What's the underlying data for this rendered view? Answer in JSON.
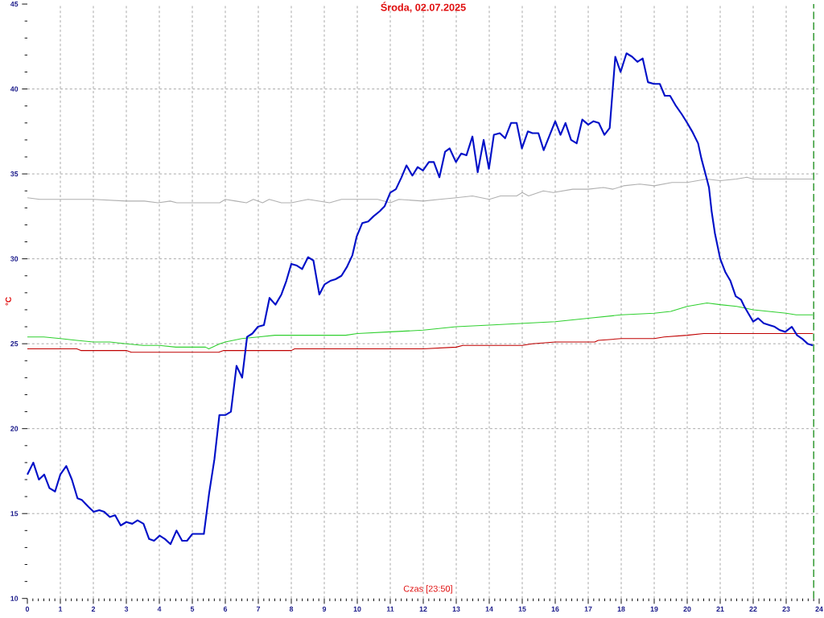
{
  "chart_data": {
    "type": "line",
    "title": "Środa, 02.07.2025",
    "xlabel": "Czas [23:50]",
    "ylabel": "°C",
    "xlim": [
      0,
      24
    ],
    "ylim": [
      10,
      45
    ],
    "xticks": [
      0,
      1,
      2,
      3,
      4,
      5,
      6,
      7,
      8,
      9,
      10,
      11,
      12,
      13,
      14,
      15,
      16,
      17,
      18,
      19,
      20,
      21,
      22,
      23,
      24
    ],
    "yticks": [
      10,
      15,
      20,
      25,
      30,
      35,
      40,
      45
    ],
    "grid": true,
    "marker": "none",
    "ref_lines": [
      {
        "axis": "x",
        "value": 23.833,
        "color": "#008000",
        "line_style": "dashed"
      }
    ],
    "series": [
      {
        "color": "#b0b0b0",
        "x": [
          0,
          0.38,
          1.0,
          1.36,
          2,
          3,
          3.55,
          3.96,
          4.33,
          4.53,
          5,
          5.83,
          6,
          6.32,
          6.64,
          6.85,
          7.13,
          7.33,
          7.7,
          8,
          8.51,
          9.16,
          9.52,
          10,
          10.62,
          11,
          11.26,
          12,
          12.49,
          13,
          13.49,
          14,
          14.34,
          14.83,
          15,
          15.19,
          15.64,
          15.94,
          16.53,
          17,
          17.46,
          17.75,
          18.07,
          18.56,
          19,
          19.54,
          20,
          20.59,
          21,
          21.49,
          21.81,
          22,
          23,
          23.81
        ],
        "values": [
          33.6,
          33.5,
          33.5,
          33.5,
          33.5,
          33.4,
          33.4,
          33.3,
          33.4,
          33.3,
          33.3,
          33.3,
          33.5,
          33.4,
          33.3,
          33.5,
          33.3,
          33.5,
          33.3,
          33.3,
          33.5,
          33.3,
          33.5,
          33.5,
          33.5,
          33.3,
          33.5,
          33.4,
          33.5,
          33.6,
          33.7,
          33.5,
          33.7,
          33.7,
          33.9,
          33.7,
          34.0,
          33.9,
          34.1,
          34.1,
          34.2,
          34.1,
          34.3,
          34.4,
          34.3,
          34.5,
          34.5,
          34.7,
          34.6,
          34.7,
          34.8,
          34.7,
          34.7,
          34.7
        ]
      },
      {
        "color": "#c00000",
        "x": [
          0,
          1.5,
          1.62,
          3.0,
          3.15,
          5.8,
          5.95,
          8.0,
          8.1,
          12.0,
          13.0,
          13.2,
          15.0,
          15.3,
          16.0,
          17.2,
          17.3,
          18.0,
          19.0,
          19.3,
          20.0,
          20.5,
          23.81
        ],
        "values": [
          24.7,
          24.7,
          24.6,
          24.6,
          24.5,
          24.5,
          24.6,
          24.6,
          24.7,
          24.7,
          24.8,
          24.9,
          24.9,
          25.0,
          25.1,
          25.1,
          25.2,
          25.3,
          25.3,
          25.4,
          25.5,
          25.6,
          25.6
        ]
      },
      {
        "color": "#30d030",
        "x": [
          0,
          0.5,
          1.0,
          1.5,
          2,
          2.5,
          3,
          3.5,
          4,
          4.5,
          5,
          5.4,
          5.5,
          5.83,
          6,
          6.5,
          7,
          7.5,
          8,
          9,
          9.65,
          10,
          11,
          12,
          13,
          14,
          15,
          16,
          17,
          18,
          19,
          19.5,
          20,
          20.6,
          21,
          21.5,
          22,
          23,
          23.3,
          23.81
        ],
        "values": [
          25.4,
          25.4,
          25.3,
          25.2,
          25.1,
          25.1,
          25.0,
          24.9,
          24.9,
          24.8,
          24.8,
          24.8,
          24.7,
          25.0,
          25.1,
          25.3,
          25.4,
          25.5,
          25.5,
          25.5,
          25.5,
          25.6,
          25.7,
          25.8,
          26.0,
          26.1,
          26.2,
          26.3,
          26.5,
          26.7,
          26.8,
          26.9,
          27.2,
          27.4,
          27.3,
          27.2,
          27.0,
          26.8,
          26.7,
          26.7
        ]
      },
      {
        "color": "#0010c8",
        "x": [
          0,
          0.18,
          0.35,
          0.51,
          0.67,
          0.84,
          1.0,
          1.18,
          1.35,
          1.52,
          1.65,
          1.85,
          2.01,
          2.18,
          2.33,
          2.5,
          2.66,
          2.83,
          3.0,
          3.18,
          3.34,
          3.52,
          3.69,
          3.84,
          4.01,
          4.17,
          4.34,
          4.52,
          4.69,
          4.84,
          5.0,
          5.18,
          5.35,
          5.51,
          5.67,
          5.82,
          6.0,
          6.17,
          6.34,
          6.51,
          6.66,
          6.82,
          6.99,
          7.17,
          7.34,
          7.52,
          7.7,
          7.85,
          8.0,
          8.17,
          8.33,
          8.51,
          8.67,
          8.85,
          9.01,
          9.18,
          9.34,
          9.52,
          9.68,
          9.85,
          9.98,
          10.15,
          10.33,
          10.49,
          10.68,
          10.83,
          11.0,
          11.17,
          11.34,
          11.49,
          11.67,
          11.83,
          11.99,
          12.17,
          12.32,
          12.49,
          12.66,
          12.8,
          12.99,
          13.15,
          13.31,
          13.49,
          13.65,
          13.83,
          13.99,
          14.14,
          14.32,
          14.48,
          14.66,
          14.83,
          14.99,
          15.17,
          15.31,
          15.49,
          15.65,
          16.0,
          16.16,
          16.31,
          16.48,
          16.65,
          16.82,
          17.0,
          17.16,
          17.32,
          17.49,
          17.65,
          17.82,
          17.98,
          18.16,
          18.33,
          18.49,
          18.65,
          18.81,
          18.99,
          19.17,
          19.32,
          19.48,
          19.66,
          19.84,
          20.0,
          20.15,
          20.33,
          20.43,
          20.58,
          20.66,
          20.74,
          20.84,
          21.0,
          21.16,
          21.31,
          21.47,
          21.63,
          21.73,
          21.85,
          22.0,
          22.15,
          22.32,
          22.49,
          22.65,
          22.81,
          22.97,
          23.17,
          23.33,
          23.48,
          23.65,
          23.81
        ],
        "values": [
          17.3,
          18.0,
          17.0,
          17.3,
          16.5,
          16.3,
          17.3,
          17.8,
          17.0,
          15.9,
          15.8,
          15.4,
          15.1,
          15.2,
          15.1,
          14.8,
          14.9,
          14.3,
          14.5,
          14.4,
          14.6,
          14.4,
          13.5,
          13.4,
          13.7,
          13.5,
          13.2,
          14.0,
          13.4,
          13.4,
          13.8,
          13.8,
          13.8,
          16.2,
          18.2,
          20.8,
          20.8,
          21.0,
          23.7,
          23.0,
          25.4,
          25.6,
          26.0,
          26.1,
          27.7,
          27.3,
          27.9,
          28.7,
          29.7,
          29.6,
          29.4,
          30.1,
          29.9,
          27.9,
          28.5,
          28.7,
          28.8,
          29.0,
          29.5,
          30.2,
          31.3,
          32.1,
          32.2,
          32.5,
          32.8,
          33.1,
          33.9,
          34.1,
          34.8,
          35.5,
          34.9,
          35.4,
          35.2,
          35.7,
          35.7,
          34.8,
          36.3,
          36.5,
          35.7,
          36.2,
          36.1,
          37.2,
          35.1,
          37.0,
          35.3,
          37.3,
          37.4,
          37.1,
          38.0,
          38.0,
          36.5,
          37.5,
          37.4,
          37.4,
          36.4,
          38.1,
          37.3,
          38.0,
          37.0,
          36.8,
          38.2,
          37.9,
          38.1,
          38.0,
          37.3,
          37.7,
          41.9,
          41.0,
          42.1,
          41.9,
          41.6,
          41.8,
          40.4,
          40.3,
          40.3,
          39.6,
          39.6,
          39.0,
          38.5,
          38.0,
          37.5,
          36.8,
          35.9,
          34.8,
          34.2,
          32.8,
          31.5,
          30.0,
          29.2,
          28.7,
          27.8,
          27.6,
          27.2,
          26.8,
          26.3,
          26.5,
          26.2,
          26.1,
          26.0,
          25.8,
          25.7,
          26.0,
          25.5,
          25.3,
          25.0,
          24.9
        ]
      }
    ]
  }
}
